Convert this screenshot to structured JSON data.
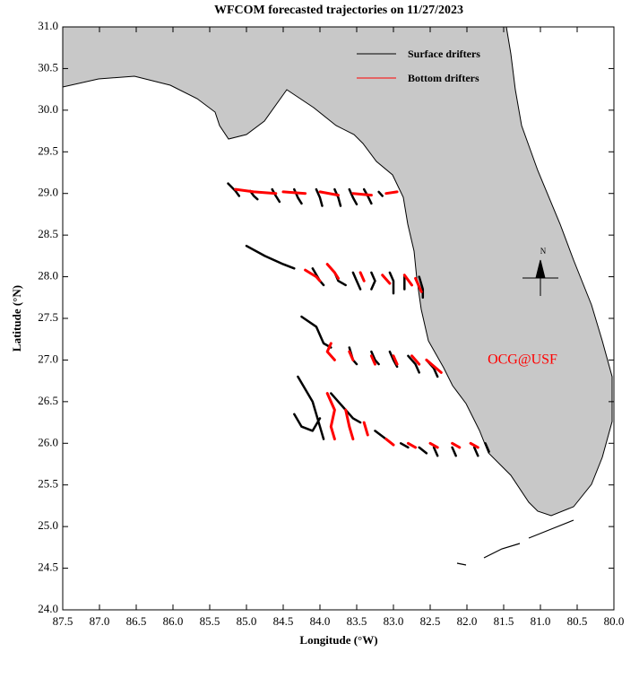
{
  "chart_data": {
    "type": "trajectory-map",
    "title": "WFCOM forecasted trajectories on 11/27/2023",
    "x_label": "Longitude (°W)",
    "y_label": "Latitude (°N)",
    "annotation": "OCG@USF",
    "compass_label": "N",
    "xlim": [
      87.5,
      80.0
    ],
    "ylim": [
      24.0,
      31.0
    ],
    "xticks": [
      {
        "value": 87.5,
        "label": "87.5"
      },
      {
        "value": 87,
        "label": "87.0"
      },
      {
        "value": 86.5,
        "label": "86.5"
      },
      {
        "value": 86,
        "label": "86.0"
      },
      {
        "value": 85.5,
        "label": "85.5"
      },
      {
        "value": 85,
        "label": "85.0"
      },
      {
        "value": 84.5,
        "label": "84.5"
      },
      {
        "value": 84,
        "label": "84.0"
      },
      {
        "value": 83.5,
        "label": "83.5"
      },
      {
        "value": 83,
        "label": "83.0"
      },
      {
        "value": 82.5,
        "label": "82.5"
      },
      {
        "value": 82,
        "label": "82.0"
      },
      {
        "value": 81.5,
        "label": "81.5"
      },
      {
        "value": 81,
        "label": "81.0"
      },
      {
        "value": 80.5,
        "label": "80.5"
      },
      {
        "value": 80,
        "label": "80.0"
      }
    ],
    "yticks": [
      {
        "value": 24,
        "label": "24.0"
      },
      {
        "value": 24.5,
        "label": "24.5"
      },
      {
        "value": 25,
        "label": "25.0"
      },
      {
        "value": 25.5,
        "label": "25.5"
      },
      {
        "value": 26,
        "label": "26.0"
      },
      {
        "value": 26.5,
        "label": "26.5"
      },
      {
        "value": 27,
        "label": "27.0"
      },
      {
        "value": 27.5,
        "label": "27.5"
      },
      {
        "value": 28,
        "label": "28.0"
      },
      {
        "value": 28.5,
        "label": "28.5"
      },
      {
        "value": 29,
        "label": "29.0"
      },
      {
        "value": 29.5,
        "label": "29.5"
      },
      {
        "value": 30,
        "label": "30.0"
      },
      {
        "value": 30.5,
        "label": "30.5"
      },
      {
        "value": 31,
        "label": "31.0"
      }
    ],
    "series": [
      {
        "name": "Surface drifters",
        "color": "#000000",
        "x": [
          85.25,
          85.15,
          85.1,
          null,
          84.95,
          84.9,
          84.85,
          null,
          84.65,
          84.6,
          84.55,
          null,
          84.35,
          84.3,
          84.25,
          null,
          84.05,
          84.0,
          83.97,
          null,
          83.8,
          83.75,
          83.72,
          null,
          83.6,
          83.55,
          83.5,
          null,
          83.4,
          83.35,
          83.3,
          null,
          83.2,
          83.15,
          null,
          85.0,
          84.75,
          84.5,
          84.35,
          null,
          84.1,
          84.0,
          83.95,
          null,
          83.8,
          83.75,
          83.65,
          null,
          83.55,
          83.5,
          83.45,
          null,
          83.3,
          83.25,
          83.3,
          null,
          83.05,
          83.0,
          83.0,
          null,
          82.85,
          82.85,
          null,
          82.65,
          82.6,
          82.6,
          null,
          84.25,
          84.05,
          83.95,
          83.85,
          null,
          83.6,
          83.55,
          83.5,
          null,
          83.3,
          83.25,
          83.2,
          null,
          83.05,
          83.0,
          82.95,
          null,
          82.8,
          82.7,
          82.65,
          null,
          82.55,
          82.45,
          82.4,
          null,
          84.35,
          84.25,
          84.1,
          84.0,
          null,
          84.3,
          84.1,
          84.0,
          83.95,
          null,
          83.85,
          83.7,
          83.55,
          83.45,
          null,
          83.25,
          83.1,
          null,
          82.9,
          82.8,
          null,
          82.65,
          82.55,
          null,
          82.45,
          82.4,
          null,
          82.2,
          82.15,
          null,
          81.9,
          81.85,
          null,
          81.75,
          81.7
        ],
        "values": [
          29.12,
          29.03,
          28.97,
          null,
          29.03,
          28.97,
          28.93,
          null,
          29.05,
          28.97,
          28.9,
          null,
          29.05,
          28.95,
          28.88,
          null,
          29.05,
          28.95,
          28.85,
          null,
          29.05,
          28.95,
          28.85,
          null,
          29.05,
          28.95,
          28.87,
          null,
          29.05,
          28.97,
          28.88,
          null,
          29.02,
          28.97,
          null,
          28.37,
          28.25,
          28.15,
          28.1,
          null,
          28.1,
          27.95,
          27.9,
          null,
          28.05,
          27.95,
          27.9,
          null,
          28.05,
          27.95,
          27.85,
          null,
          28.05,
          27.95,
          27.85,
          null,
          28.05,
          27.95,
          27.8,
          null,
          28.0,
          27.85,
          null,
          28.0,
          27.85,
          27.75,
          null,
          27.52,
          27.4,
          27.2,
          27.15,
          null,
          27.15,
          27.0,
          26.95,
          null,
          27.1,
          27.0,
          26.95,
          null,
          27.1,
          27.0,
          26.92,
          null,
          27.05,
          26.95,
          26.85,
          null,
          27.0,
          26.9,
          26.8,
          null,
          26.35,
          26.2,
          26.15,
          26.3,
          null,
          26.8,
          26.5,
          26.2,
          26.05,
          null,
          26.6,
          26.45,
          26.3,
          26.25,
          null,
          26.15,
          26.05,
          null,
          26.0,
          25.95,
          null,
          25.95,
          25.88,
          null,
          25.95,
          25.85,
          null,
          25.95,
          25.85,
          null,
          25.95,
          25.85,
          null,
          26.0,
          25.9
        ]
      },
      {
        "name": "Bottom drifters",
        "color": "#ff0000",
        "x": [
          85.15,
          84.9,
          84.6,
          null,
          84.5,
          84.2,
          null,
          84.0,
          83.75,
          null,
          83.55,
          83.3,
          null,
          83.1,
          82.95,
          null,
          84.2,
          84.05,
          84.0,
          null,
          83.9,
          83.8,
          83.75,
          null,
          83.45,
          83.4,
          null,
          83.15,
          83.05,
          null,
          82.85,
          82.75,
          null,
          82.7,
          82.62,
          null,
          83.85,
          83.9,
          83.8,
          null,
          83.6,
          83.55,
          null,
          83.3,
          83.25,
          null,
          83.0,
          82.95,
          null,
          82.75,
          82.65,
          null,
          82.55,
          82.35,
          null,
          83.9,
          83.8,
          83.85,
          83.8,
          null,
          83.65,
          83.6,
          83.55,
          null,
          83.4,
          83.35,
          null,
          83.1,
          83.0,
          null,
          82.8,
          82.7,
          null,
          82.5,
          82.4,
          null,
          82.2,
          82.1,
          null,
          81.95,
          81.85
        ],
        "values": [
          29.05,
          29.02,
          29.0,
          null,
          29.02,
          29.0,
          null,
          29.02,
          28.98,
          null,
          29.0,
          28.98,
          null,
          29.0,
          29.02,
          null,
          28.08,
          28.0,
          27.95,
          null,
          28.15,
          28.05,
          27.98,
          null,
          28.05,
          27.95,
          null,
          28.02,
          27.92,
          null,
          28.02,
          27.9,
          null,
          27.98,
          27.82,
          null,
          27.2,
          27.1,
          27.0,
          null,
          27.1,
          27.0,
          null,
          27.05,
          26.95,
          null,
          27.05,
          26.95,
          null,
          27.05,
          26.95,
          null,
          27.0,
          26.85,
          null,
          26.6,
          26.4,
          26.2,
          26.05,
          null,
          26.4,
          26.2,
          26.05,
          null,
          26.25,
          26.1,
          null,
          26.05,
          25.98,
          null,
          26.0,
          25.95,
          null,
          26.0,
          25.95,
          null,
          26.0,
          25.95,
          null,
          26.0,
          25.95
        ]
      }
    ]
  }
}
